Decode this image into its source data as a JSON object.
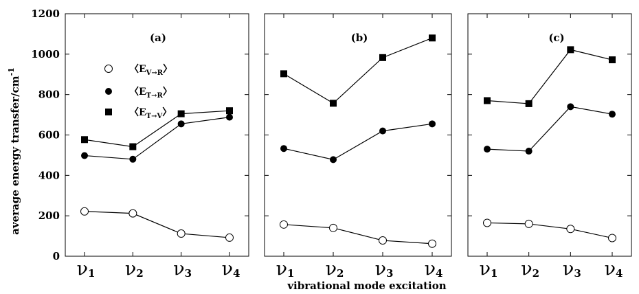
{
  "chart_data": {
    "type": "line",
    "ylabel": "average energy transfer/cm",
    "ylabel_sup": "-1",
    "xlabel": "vibrational mode excitation",
    "ylim": [
      0,
      1200
    ],
    "yticks": [
      0,
      200,
      400,
      600,
      800,
      1000,
      1200
    ],
    "ytick_labels": [
      "0",
      "200",
      "400",
      "600",
      "800",
      "1000",
      "1200"
    ],
    "categories": [
      {
        "base": "ν",
        "sub": "1"
      },
      {
        "base": "ν",
        "sub": "2"
      },
      {
        "base": "ν",
        "sub": "3"
      },
      {
        "base": "ν",
        "sub": "4"
      }
    ],
    "legend": {
      "placement": "top-left of panel (a)",
      "entries": [
        {
          "main": "〈E",
          "sub": "V→R",
          "close": "〉",
          "marker": "open-circle"
        },
        {
          "main": "〈E",
          "sub": "T→R",
          "close": "〉",
          "marker": "filled-circle"
        },
        {
          "main": "〈E",
          "sub": "T→V",
          "close": "〉",
          "marker": "filled-square"
        }
      ]
    },
    "panels": [
      {
        "label": "(a)",
        "series": [
          {
            "marker": "open-circle",
            "values": [
              222,
              212,
              112,
              92
            ]
          },
          {
            "marker": "filled-circle",
            "values": [
              498,
              480,
              655,
              688
            ]
          },
          {
            "marker": "filled-square",
            "values": [
              577,
              542,
              705,
              720
            ]
          }
        ]
      },
      {
        "label": "(b)",
        "series": [
          {
            "marker": "open-circle",
            "values": [
              157,
              140,
              78,
              62
            ]
          },
          {
            "marker": "filled-circle",
            "values": [
              533,
              478,
              620,
              655
            ]
          },
          {
            "marker": "filled-square",
            "values": [
              903,
              757,
              983,
              1080
            ]
          }
        ]
      },
      {
        "label": "(c)",
        "series": [
          {
            "marker": "open-circle",
            "values": [
              165,
              160,
              135,
              90
            ]
          },
          {
            "marker": "filled-circle",
            "values": [
              530,
              520,
              740,
              703
            ]
          },
          {
            "marker": "filled-square",
            "values": [
              770,
              755,
              1022,
              972
            ]
          }
        ]
      }
    ]
  }
}
